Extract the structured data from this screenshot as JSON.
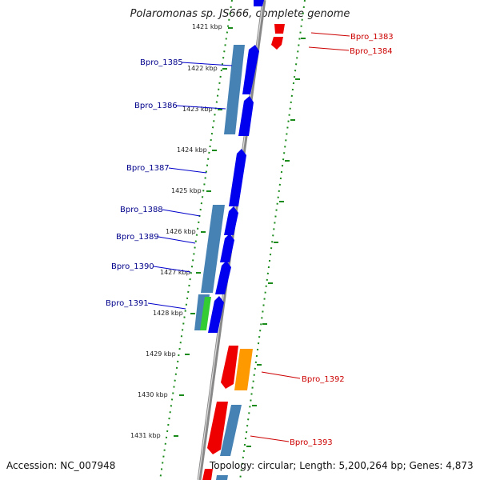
{
  "title": "Polaromonas sp. JS666, complete genome",
  "accession": "Accession: NC_007948",
  "topology": "Topology: circular; Length: 5,200,264 bp; Genes: 4,873",
  "colors": {
    "plus_strand_cds": "#0000ee",
    "minus_strand_cds": "#ee0000",
    "gene_bar": "#4682b4",
    "orange_feature": "#ff9900",
    "green_feature": "#33cc33",
    "ruler_dots": "#1a8a1a",
    "backbone": "#777777",
    "plus_label": "#00008b",
    "minus_label": "#cc0000"
  },
  "kbp_ticks": [
    "1421 kbp",
    "1422 kbp",
    "1423 kbp",
    "1424 kbp",
    "1425 kbp",
    "1426 kbp",
    "1427 kbp",
    "1428 kbp",
    "1429 kbp",
    "1430 kbp",
    "1431 kbp"
  ],
  "genes_plus": [
    "Bpro_1385",
    "Bpro_1386",
    "Bpro_1387",
    "Bpro_1388",
    "Bpro_1389",
    "Bpro_1390",
    "Bpro_1391"
  ],
  "genes_minus": [
    "Bpro_1383",
    "Bpro_1384",
    "Bpro_1392",
    "Bpro_1393"
  ]
}
